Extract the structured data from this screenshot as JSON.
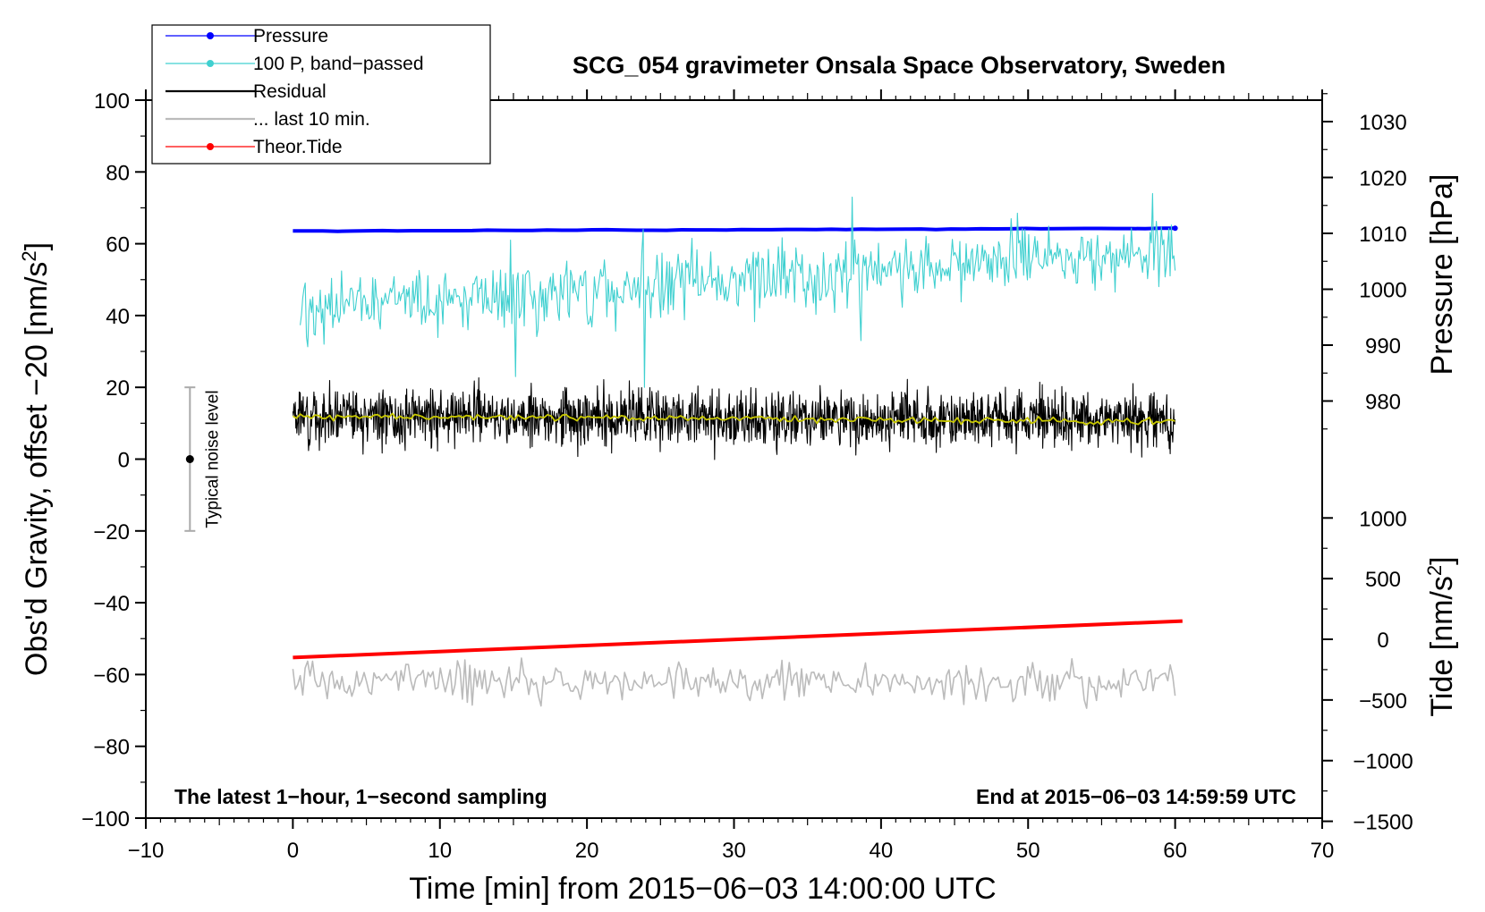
{
  "chart_data": {
    "type": "line",
    "title": "SCG_054 gravimeter Onsala Space Observatory, Sweden",
    "xlabel": "Time [min] from 2015−06−03 14:00:00 UTC",
    "ylabel_left": "Obs'd Gravity, offset −20 [nm/s",
    "ylabel_left_exp": "2",
    "ylabel_left_end": "]",
    "ylabel_pressure": "Pressure [hPa]",
    "ylabel_tide": "Tide [nm/s",
    "ylabel_tide_exp": "2",
    "ylabel_tide_end": "]",
    "xlim": [
      -10,
      70
    ],
    "ylim_left": [
      -100,
      100
    ],
    "pressure_range": [
      975,
      1035
    ],
    "tide_range": [
      -1500,
      1500
    ],
    "x_ticks": [
      {
        "value": -10,
        "label": "−10"
      },
      {
        "value": 0,
        "label": "0"
      },
      {
        "value": 10,
        "label": "10"
      },
      {
        "value": 20,
        "label": "20"
      },
      {
        "value": 30,
        "label": "30"
      },
      {
        "value": 40,
        "label": "40"
      },
      {
        "value": 50,
        "label": "50"
      },
      {
        "value": 60,
        "label": "60"
      },
      {
        "value": 70,
        "label": "70"
      }
    ],
    "y_ticks_left": [
      {
        "value": 100,
        "label": "100"
      },
      {
        "value": 80,
        "label": "80"
      },
      {
        "value": 60,
        "label": "60"
      },
      {
        "value": 40,
        "label": "40"
      },
      {
        "value": 20,
        "label": "20"
      },
      {
        "value": 0,
        "label": "0"
      },
      {
        "value": -20,
        "label": "−20"
      },
      {
        "value": -40,
        "label": "−40"
      },
      {
        "value": -60,
        "label": "−60"
      },
      {
        "value": -80,
        "label": "−80"
      },
      {
        "value": -100,
        "label": "−100"
      }
    ],
    "pressure_ticks": [
      {
        "value": 1030,
        "label": "1030"
      },
      {
        "value": 1020,
        "label": "1020"
      },
      {
        "value": 1010,
        "label": "1010"
      },
      {
        "value": 1000,
        "label": "1000"
      },
      {
        "value": 990,
        "label": "990"
      },
      {
        "value": 980,
        "label": "980"
      }
    ],
    "tide_ticks": [
      {
        "value": 1000,
        "label": "1000"
      },
      {
        "value": 500,
        "label": "500"
      },
      {
        "value": 0,
        "label": "0"
      },
      {
        "value": -500,
        "label": "−500"
      },
      {
        "value": -1000,
        "label": "−1000"
      },
      {
        "value": -1500,
        "label": "−1500"
      }
    ],
    "legend": [
      {
        "name": "Pressure",
        "color": "#0000ff",
        "marker": true
      },
      {
        "name": "100 P, band−passed",
        "color": "#40d0d0",
        "marker": true
      },
      {
        "name": "Residual",
        "color": "#000000",
        "marker": false
      },
      {
        "name": "... last 10 min.",
        "color": "#bbbbbb",
        "marker": false
      },
      {
        "name": "Theor.Tide",
        "color": "#ff0000",
        "marker": true
      }
    ],
    "series": [
      {
        "name": "Pressure",
        "axis": "pressure",
        "color": "#0000ff",
        "x_start": 0,
        "x_end": 60,
        "start": 1010.4,
        "end": 1010.9,
        "noise": 0.05,
        "n": 60,
        "seed": 1
      },
      {
        "name": "100 P, band−passed",
        "axis": "left",
        "color": "#40d0d0",
        "x_start": 0.5,
        "x_end": 60,
        "start": 42,
        "end": 58,
        "noise": 6.5,
        "n": 700,
        "seed": 2,
        "spikes": [
          {
            "x": 15.1,
            "y": 23
          },
          {
            "x": 23.9,
            "y": 20
          },
          {
            "x": 38.6,
            "y": 33
          },
          {
            "x": 58.5,
            "y": 74
          },
          {
            "x": 14.8,
            "y": 61
          },
          {
            "x": 23.8,
            "y": 64
          },
          {
            "x": 38,
            "y": 73
          }
        ]
      },
      {
        "name": "Residual",
        "axis": "left",
        "color": "#000000",
        "x_start": 0,
        "x_end": 60,
        "start": 12,
        "end": 11,
        "noise": 5.5,
        "n": 1800,
        "seed": 3
      },
      {
        "name": "Residual smoothed",
        "axis": "left",
        "color": "#c8c800",
        "x_start": 0,
        "x_end": 60,
        "start": 12,
        "end": 10.5,
        "noise": 0.7,
        "n": 240,
        "seed": 4
      },
      {
        "name": "... last 10 min.",
        "axis": "left",
        "color": "#bbbbbb",
        "x_start": 0,
        "x_end": 60,
        "start": -62,
        "end": -62,
        "noise": 3.8,
        "n": 360,
        "seed": 5
      },
      {
        "name": "Theor.Tide",
        "axis": "tide",
        "color": "#ff0000",
        "x_start": 0,
        "x_end": 60.5,
        "start": -150,
        "end": 150,
        "noise": 0,
        "n": 2,
        "seed": 6
      }
    ],
    "noise_bar": {
      "label": "Typical noise level",
      "x": -7,
      "center": 0,
      "low": -20,
      "high": 20
    },
    "annotations": {
      "left": "The latest 1−hour, 1−second sampling",
      "right": "End at 2015−06−03 14:59:59 UTC"
    }
  }
}
